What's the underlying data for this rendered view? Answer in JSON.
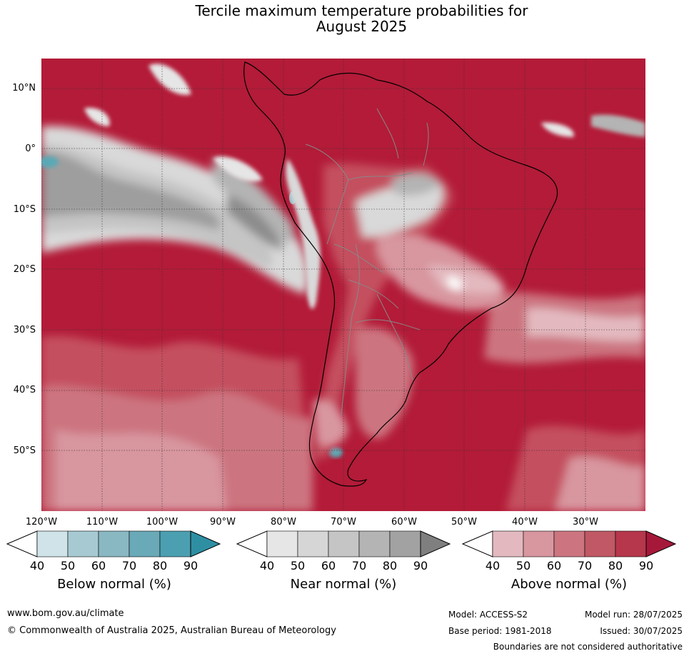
{
  "title_line1": "Tercile maximum temperature probabilities for",
  "title_line2": "August 2025",
  "map": {
    "lat_labels": [
      "10°N",
      "0°",
      "10°S",
      "20°S",
      "30°S",
      "40°S",
      "50°S"
    ],
    "lon_labels": [
      "120°W",
      "110°W",
      "100°W",
      "90°W",
      "80°W",
      "70°W",
      "60°W",
      "50°W",
      "40°W",
      "30°W"
    ],
    "colors": {
      "ocean_above": "#b31b38",
      "land_above": "#c4505e",
      "near_light": "#d9d9d9",
      "near_dark": "#8c8c8c",
      "below": "#5aa9b6",
      "coast": "#000000",
      "border": "#888888",
      "grid": "#333333"
    }
  },
  "colorbars": [
    {
      "id": "below",
      "label": "Below normal (%)",
      "ticks": [
        "40",
        "50",
        "60",
        "70",
        "80",
        "90"
      ],
      "colors": [
        "#cfe3e8",
        "#a7cad2",
        "#89b8c3",
        "#6aa9b8",
        "#4b9fb1",
        "#2e8fa3"
      ]
    },
    {
      "id": "near",
      "label": "Near normal (%)",
      "ticks": [
        "40",
        "50",
        "60",
        "70",
        "80",
        "90"
      ],
      "colors": [
        "#e6e6e6",
        "#d6d6d6",
        "#c5c5c5",
        "#b4b4b4",
        "#a2a2a2",
        "#7f7f7f"
      ]
    },
    {
      "id": "above",
      "label": "Above normal (%)",
      "ticks": [
        "40",
        "50",
        "60",
        "70",
        "80",
        "90"
      ],
      "colors": [
        "#e3b9bf",
        "#d8969f",
        "#cc7580",
        "#c05865",
        "#b6364b",
        "#a6183a"
      ]
    }
  ],
  "footer": {
    "website": "www.bom.gov.au/climate",
    "copyright": "© Commonwealth of Australia 2025, Australian Bureau of Meteorology",
    "model": "Model: ACCESS-S2",
    "model_run": "Model run: 28/07/2025",
    "base_period": "Base period: 1981-2018",
    "issued": "Issued: 30/07/2025",
    "boundaries": "Boundaries are not considered authoritative"
  }
}
